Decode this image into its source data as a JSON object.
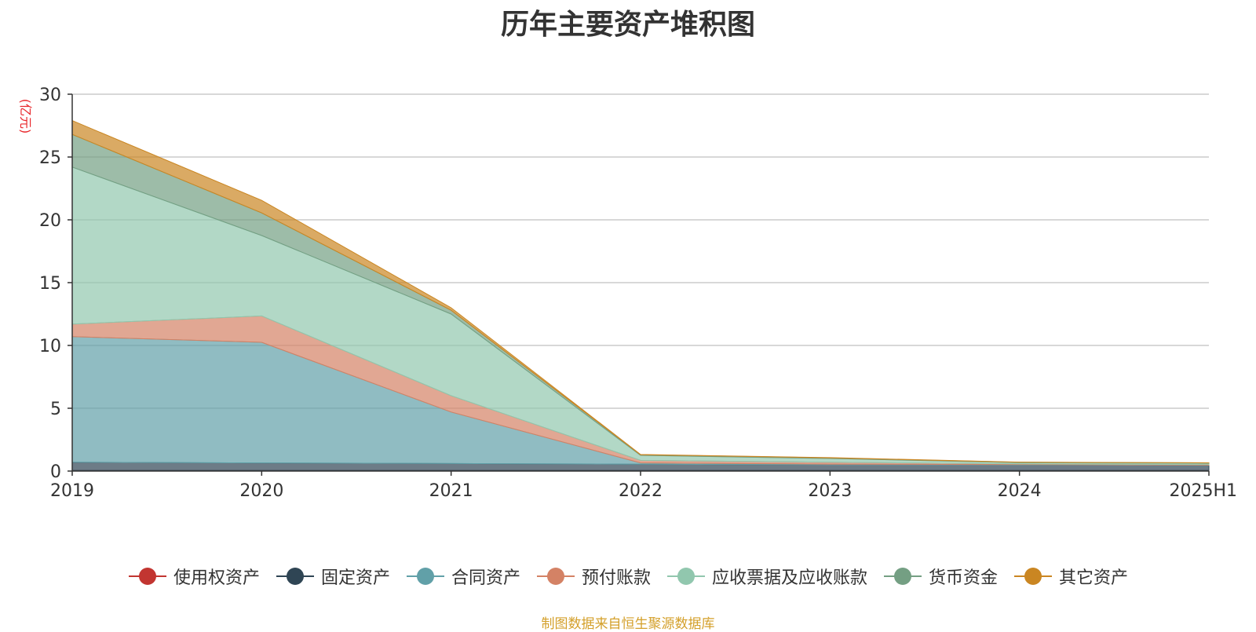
{
  "chart_data": {
    "type": "area",
    "stacked": true,
    "title": "历年主要资产堆积图",
    "ylabel": "(亿元)",
    "xlabel": "",
    "categories": [
      "2019",
      "2020",
      "2021",
      "2022",
      "2023",
      "2024",
      "2025H1"
    ],
    "ylim": [
      0,
      30
    ],
    "yticks": [
      0,
      5,
      10,
      15,
      20,
      25,
      30
    ],
    "grid": true,
    "legend_position": "bottom",
    "series": [
      {
        "name": "使用权资产",
        "color": "#c23531",
        "values": [
          0.05,
          0.05,
          0.05,
          0.05,
          0.05,
          0.05,
          0.05
        ]
      },
      {
        "name": "固定资产",
        "color": "#2f4554",
        "values": [
          0.65,
          0.6,
          0.55,
          0.5,
          0.45,
          0.45,
          0.4
        ]
      },
      {
        "name": "合同资产",
        "color": "#61a0a8",
        "values": [
          10.0,
          9.6,
          4.1,
          0.1,
          0.05,
          0.02,
          0.02
        ]
      },
      {
        "name": "预付账款",
        "color": "#d48265",
        "values": [
          1.0,
          2.1,
          1.3,
          0.2,
          0.15,
          0.05,
          0.05
        ]
      },
      {
        "name": "应收票据及应收账款",
        "color": "#91c7ae",
        "values": [
          12.5,
          6.4,
          6.5,
          0.4,
          0.3,
          0.1,
          0.1
        ]
      },
      {
        "name": "货币资金",
        "color": "#749f83",
        "values": [
          2.6,
          1.8,
          0.3,
          0.05,
          0.05,
          0.03,
          0.03
        ]
      },
      {
        "name": "其它资产",
        "color": "#ca8622",
        "values": [
          1.1,
          1.0,
          0.2,
          0.02,
          0.02,
          0.01,
          0.01
        ]
      }
    ]
  },
  "source_note": "制图数据来自恒生聚源数据库"
}
